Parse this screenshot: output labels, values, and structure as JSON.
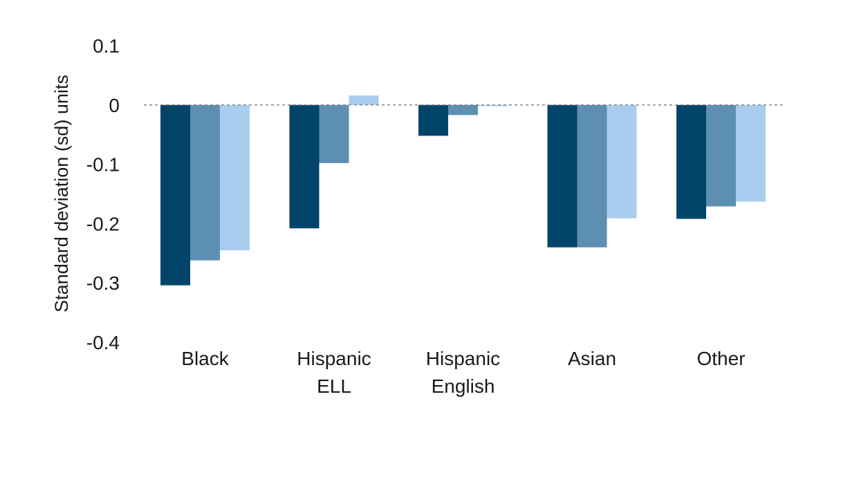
{
  "chart_data": {
    "type": "bar",
    "title": "",
    "xlabel": "",
    "ylabel": "Standard deviation (sd) units",
    "ylim": [
      -0.4,
      0.1
    ],
    "yticks": [
      "0.1",
      "0",
      "-0.1",
      "-0.2",
      "-0.3",
      "-0.4"
    ],
    "ytick_values": [
      0.1,
      0,
      -0.1,
      -0.2,
      -0.3,
      -0.4
    ],
    "categories": [
      [
        "Black"
      ],
      [
        "Hispanic",
        "ELL"
      ],
      [
        "Hispanic",
        "English"
      ],
      [
        "Asian"
      ],
      [
        "Other"
      ]
    ],
    "series": [
      {
        "values": [
          -0.304,
          -0.208,
          -0.052,
          -0.24,
          -0.192
        ],
        "color": "#03456a"
      },
      {
        "values": [
          -0.262,
          -0.098,
          -0.017,
          -0.24,
          -0.171
        ],
        "color": "#5d8fb3"
      },
      {
        "values": [
          -0.245,
          0.016,
          -0.002,
          -0.191,
          -0.163
        ],
        "color": "#aacdef"
      }
    ],
    "zero_line": {
      "style": "dashed",
      "color": "#888888"
    },
    "grid": false,
    "legend": "none"
  }
}
